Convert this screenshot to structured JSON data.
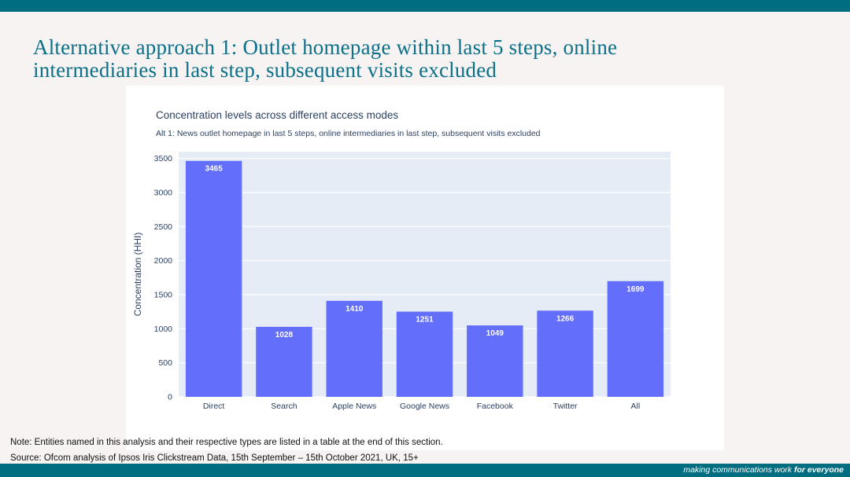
{
  "slide": {
    "title_line1": "Alternative approach 1: Outlet homepage within last 5 steps, online",
    "title_line2": "intermediaries in last step, subsequent visits excluded"
  },
  "chart_data": {
    "type": "bar",
    "title": "Concentration levels across different access modes",
    "subtitle": "Alt 1: News outlet homepage in last 5 steps, online intermediaries in last step, subsequent visits excluded",
    "ylabel": "Concentration (HHI)",
    "xlabel": "",
    "categories": [
      "Direct",
      "Search",
      "Apple News",
      "Google News",
      "Facebook",
      "Twitter",
      "All"
    ],
    "values": [
      3465,
      1028,
      1410,
      1251,
      1049,
      1266,
      1699
    ],
    "ylim": [
      0,
      3600
    ],
    "yticks": [
      0,
      500,
      1000,
      1500,
      2000,
      2500,
      3000,
      3500
    ],
    "grid": true,
    "legend": "none",
    "bar_color": "#636efa",
    "plot_background": "#e5ecf6"
  },
  "footer": {
    "note": "Note: Entities named in this analysis and their respective types are listed in a table at the end of this section.",
    "source": "Source: Ofcom analysis of Ipsos Iris Clickstream Data, 15th September – 15th October 2021, UK, 15+",
    "tagline_prefix": "making communications work ",
    "tagline_emphasis": "for everyone"
  },
  "colors": {
    "brand_teal": "#006e80",
    "title_teal": "#0b7088"
  }
}
